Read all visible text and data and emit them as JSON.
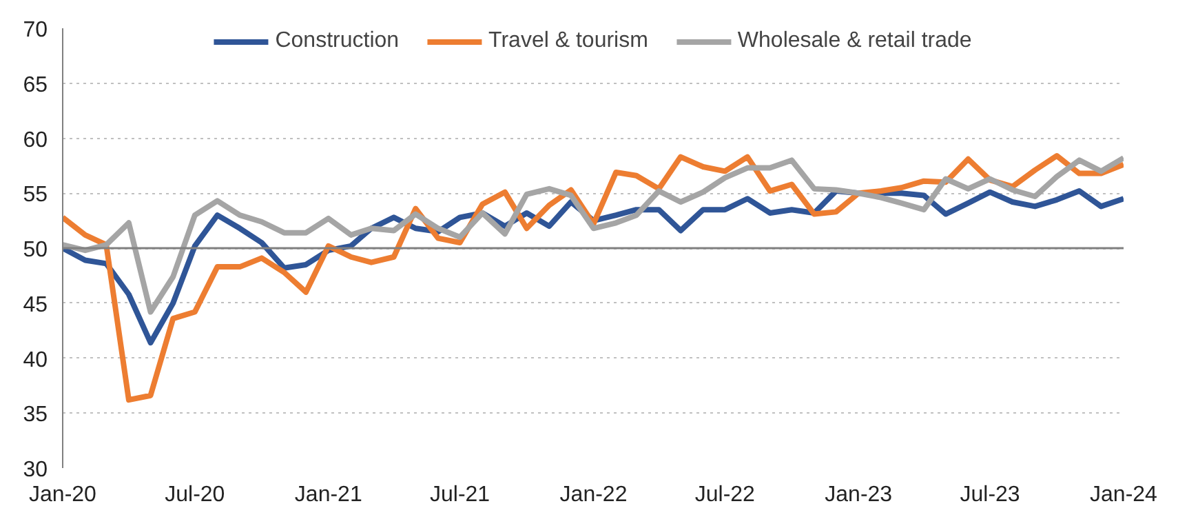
{
  "chart_data": {
    "type": "line",
    "x": [
      "2020-01",
      "2020-02",
      "2020-03",
      "2020-04",
      "2020-05",
      "2020-06",
      "2020-07",
      "2020-08",
      "2020-09",
      "2020-10",
      "2020-11",
      "2020-12",
      "2021-01",
      "2021-02",
      "2021-03",
      "2021-04",
      "2021-05",
      "2021-06",
      "2021-07",
      "2021-08",
      "2021-09",
      "2021-10",
      "2021-11",
      "2021-12",
      "2022-01",
      "2022-02",
      "2022-03",
      "2022-04",
      "2022-05",
      "2022-06",
      "2022-07",
      "2022-08",
      "2022-09",
      "2022-10",
      "2022-11",
      "2022-12",
      "2023-01",
      "2023-02",
      "2023-03",
      "2023-04",
      "2023-05",
      "2023-06",
      "2023-07",
      "2023-08",
      "2023-09",
      "2023-10",
      "2023-11",
      "2023-12",
      "2024-01"
    ],
    "series": [
      {
        "name": "Construction",
        "color": "#2f5597",
        "values": [
          50.0,
          48.9,
          48.6,
          45.8,
          41.4,
          45.0,
          50.2,
          53.0,
          51.8,
          50.5,
          48.2,
          48.5,
          49.8,
          50.2,
          51.8,
          52.8,
          51.8,
          51.5,
          52.8,
          53.2,
          52.0,
          53.2,
          52.0,
          54.2,
          52.5,
          53.0,
          53.5,
          53.5,
          51.6,
          53.5,
          53.5,
          54.5,
          53.2,
          53.5,
          53.2,
          55.2,
          55.0,
          55.0,
          55.0,
          54.8,
          53.1,
          54.1,
          55.1,
          54.2,
          53.8,
          54.4,
          55.2,
          53.8,
          54.5
        ]
      },
      {
        "name": "Travel & tourism",
        "color": "#ed7d31",
        "values": [
          52.8,
          51.2,
          50.3,
          36.2,
          36.6,
          43.6,
          44.2,
          48.3,
          48.3,
          49.1,
          47.8,
          46.0,
          50.2,
          49.2,
          48.7,
          49.2,
          53.6,
          50.9,
          50.5,
          54.0,
          55.1,
          51.8,
          53.9,
          55.3,
          52.2,
          56.9,
          56.6,
          55.4,
          58.3,
          57.4,
          57.0,
          58.3,
          55.2,
          55.8,
          53.1,
          53.3,
          55.0,
          55.2,
          55.5,
          56.1,
          56.0,
          58.1,
          56.2,
          55.6,
          57.1,
          58.4,
          56.8,
          56.8,
          57.6
        ]
      },
      {
        "name": "Wholesale & retail trade",
        "color": "#a5a5a5",
        "values": [
          50.3,
          49.8,
          50.3,
          52.3,
          44.2,
          47.4,
          53.0,
          54.3,
          53.0,
          52.4,
          51.4,
          51.4,
          52.7,
          51.2,
          51.8,
          51.6,
          53.1,
          51.8,
          51.0,
          53.2,
          51.3,
          54.9,
          55.4,
          54.8,
          51.8,
          52.3,
          53.0,
          55.2,
          54.2,
          55.1,
          56.4,
          57.3,
          57.3,
          58.0,
          55.4,
          55.3,
          55.0,
          54.6,
          54.1,
          53.5,
          56.3,
          55.4,
          56.3,
          55.3,
          54.7,
          56.5,
          58.0,
          57.0,
          58.2
        ]
      }
    ],
    "ylim": [
      30,
      70
    ],
    "yticks": [
      30,
      35,
      40,
      45,
      50,
      55,
      60,
      65,
      70
    ],
    "xlim": [
      "2020-01",
      "2024-01"
    ],
    "xticks": [
      {
        "value": "2020-01",
        "label": "Jan-20"
      },
      {
        "value": "2020-07",
        "label": "Jul-20"
      },
      {
        "value": "2021-01",
        "label": "Jan-21"
      },
      {
        "value": "2021-07",
        "label": "Jul-21"
      },
      {
        "value": "2022-01",
        "label": "Jan-22"
      },
      {
        "value": "2022-07",
        "label": "Jul-22"
      },
      {
        "value": "2023-01",
        "label": "Jan-23"
      },
      {
        "value": "2023-07",
        "label": "Jul-23"
      },
      {
        "value": "2024-01",
        "label": "Jan-24"
      }
    ],
    "ref_lines": [
      {
        "axis": "y",
        "value": 50,
        "color": "#808080"
      }
    ],
    "grid": "y",
    "legend": "top",
    "line_style": "solid",
    "marker": "none"
  }
}
